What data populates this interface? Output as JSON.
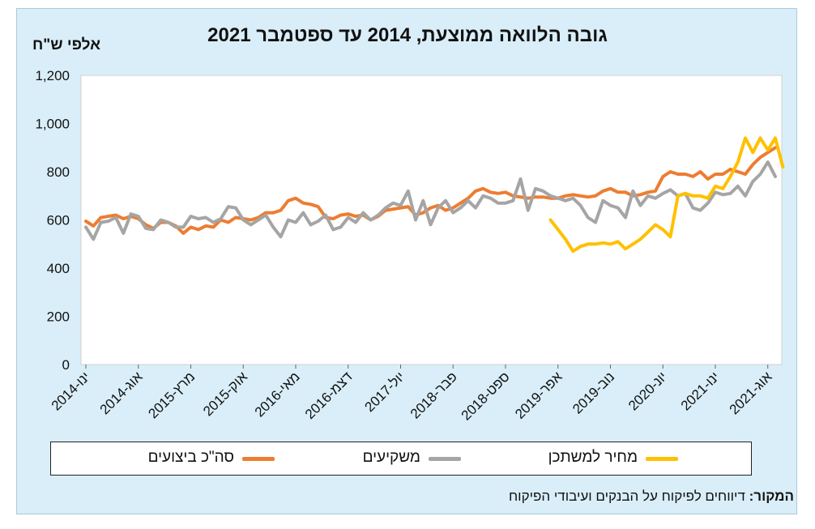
{
  "chart_data": {
    "type": "line",
    "title": "גובה הלוואה ממוצעת, 2014 עד ספטמבר 2021",
    "ylabel": "אלפי ש\"ח",
    "ylim": [
      0,
      1200
    ],
    "yticks": [
      "0",
      "200",
      "400",
      "600",
      "800",
      "1,000",
      "1,200"
    ],
    "ytick_values": [
      0,
      200,
      400,
      600,
      800,
      1000,
      1200
    ],
    "x_start": "2014-01",
    "x_count": 93,
    "xtick_labels": [
      "ינו-2014",
      "אוג-2014",
      "מרץ-2015",
      "אוק-2015",
      "מאי-2016",
      "דצמ-2016",
      "יול-2017",
      "פבר-2018",
      "ספט-2018",
      "אפר-2019",
      "נוב-2019",
      "יונ-2020",
      "ינו-2021",
      "אוג-2021"
    ],
    "xtick_indices": [
      0,
      7,
      14,
      21,
      28,
      35,
      42,
      49,
      56,
      63,
      70,
      77,
      84,
      91
    ],
    "grid": false,
    "legend_position": "bottom",
    "series": [
      {
        "name": "סה\"כ ביצועים",
        "color": "#ED7D31",
        "start_index": 0,
        "values": [
          595,
          575,
          610,
          615,
          620,
          605,
          615,
          605,
          580,
          565,
          590,
          590,
          575,
          545,
          570,
          560,
          575,
          570,
          600,
          590,
          610,
          605,
          600,
          610,
          630,
          630,
          640,
          680,
          690,
          670,
          665,
          655,
          610,
          605,
          620,
          625,
          615,
          620,
          600,
          615,
          640,
          645,
          650,
          655,
          620,
          630,
          650,
          660,
          640,
          650,
          670,
          690,
          720,
          730,
          715,
          710,
          715,
          700,
          695,
          690,
          695,
          695,
          690,
          690,
          700,
          705,
          700,
          695,
          700,
          720,
          730,
          715,
          715,
          700,
          705,
          715,
          720,
          780,
          800,
          790,
          790,
          780,
          800,
          770,
          790,
          790,
          810,
          800,
          790,
          830,
          860,
          880,
          900
        ]
      },
      {
        "name": "משקיעים",
        "color": "#A5A5A5",
        "start_index": 0,
        "values": [
          570,
          520,
          590,
          595,
          610,
          545,
          625,
          615,
          565,
          560,
          600,
          590,
          570,
          570,
          615,
          605,
          610,
          590,
          605,
          655,
          650,
          600,
          580,
          600,
          620,
          570,
          530,
          600,
          590,
          630,
          580,
          595,
          620,
          560,
          570,
          610,
          590,
          630,
          600,
          620,
          650,
          670,
          660,
          720,
          600,
          680,
          580,
          650,
          680,
          630,
          650,
          680,
          650,
          700,
          690,
          670,
          670,
          680,
          770,
          640,
          730,
          720,
          700,
          690,
          680,
          690,
          660,
          610,
          590,
          680,
          660,
          650,
          610,
          720,
          660,
          700,
          690,
          710,
          725,
          700,
          710,
          650,
          640,
          670,
          715,
          705,
          710,
          740,
          700,
          760,
          790,
          840,
          780
        ]
      },
      {
        "name": "מחיר למשתכן",
        "color": "#FFC000",
        "start_index": 62,
        "values": [
          600,
          560,
          520,
          470,
          490,
          500,
          500,
          505,
          500,
          510,
          480,
          500,
          520,
          550,
          580,
          560,
          530,
          700,
          710,
          700,
          700,
          690,
          740,
          730,
          780,
          840,
          940,
          880,
          940,
          890,
          940,
          820
        ]
      }
    ]
  },
  "source": {
    "label": "המקור:",
    "text": "דיווחים לפיקוח על הבנקים ועיבודי הפיקוח"
  }
}
